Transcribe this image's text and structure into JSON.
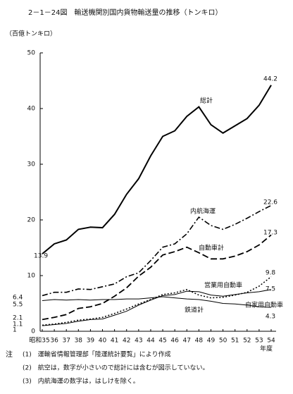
{
  "chart_data": {
    "type": "line",
    "title": "2－1－24図　輸送機関別国内貨物輸送量の推移（トンキロ）",
    "y_label": "（百億トンキロ）",
    "x_label": "年度",
    "categories": [
      "昭和35",
      "36",
      "37",
      "38",
      "39",
      "40",
      "41",
      "42",
      "43",
      "44",
      "45",
      "46",
      "47",
      "48",
      "49",
      "50",
      "51",
      "52",
      "53",
      "54"
    ],
    "ylim": [
      0,
      50
    ],
    "yticks": [
      0,
      10,
      20,
      30,
      40,
      50
    ],
    "grid": false,
    "series": [
      {
        "name": "総計",
        "color": "#000000",
        "style": "solid",
        "width": 2,
        "values": [
          13.9,
          15.7,
          16.4,
          18.3,
          18.7,
          18.6,
          21.0,
          24.6,
          27.4,
          31.5,
          35.0,
          36.0,
          38.6,
          40.3,
          37.1,
          35.6,
          36.9,
          38.2,
          40.6,
          44.2
        ]
      },
      {
        "name": "内航海運",
        "color": "#000000",
        "style": "dashdot",
        "width": 1.6,
        "values": [
          6.4,
          7.0,
          7.0,
          7.6,
          7.5,
          8.0,
          8.5,
          9.8,
          10.5,
          12.7,
          15.1,
          15.7,
          17.5,
          20.5,
          19.0,
          18.3,
          19.2,
          20.3,
          21.5,
          22.6
        ]
      },
      {
        "name": "自動車計",
        "color": "#000000",
        "style": "dashed",
        "width": 1.8,
        "values": [
          2.1,
          2.5,
          3.0,
          4.1,
          4.4,
          5.0,
          6.3,
          7.8,
          9.9,
          11.5,
          13.7,
          14.3,
          15.1,
          14.1,
          13.0,
          13.0,
          13.5,
          14.3,
          15.5,
          17.3
        ]
      },
      {
        "name": "営業用自動車",
        "color": "#000000",
        "style": "dotted",
        "width": 1.5,
        "values": [
          1.1,
          1.3,
          1.6,
          2.0,
          2.2,
          2.5,
          3.2,
          4.0,
          4.9,
          5.7,
          6.6,
          6.9,
          7.5,
          6.5,
          6.0,
          6.1,
          6.5,
          7.0,
          8.1,
          9.8
        ]
      },
      {
        "name": "自家用自動車",
        "color": "#000000",
        "style": "solid",
        "width": 1,
        "values": [
          1.0,
          1.2,
          1.4,
          1.8,
          2.1,
          2.2,
          2.9,
          3.6,
          4.7,
          5.6,
          6.4,
          6.6,
          7.2,
          7.1,
          6.5,
          6.3,
          6.6,
          6.9,
          7.1,
          7.5
        ]
      },
      {
        "name": "鉄道計",
        "color": "#000000",
        "style": "solid",
        "width": 1,
        "values": [
          5.5,
          5.7,
          5.6,
          5.7,
          5.6,
          5.7,
          5.7,
          5.8,
          5.8,
          6.0,
          6.2,
          6.0,
          5.8,
          5.7,
          5.4,
          5.0,
          4.9,
          4.7,
          4.4,
          4.3
        ]
      }
    ]
  },
  "notes_head": "注",
  "notes": [
    "(1)　運輸省情報管理部「陸運統計要覧」により作成",
    "(2)　航空は，数字が小さいので総計には含むが図示していない。",
    "(3)　内航海運の数字は，はしけを除く。"
  ]
}
